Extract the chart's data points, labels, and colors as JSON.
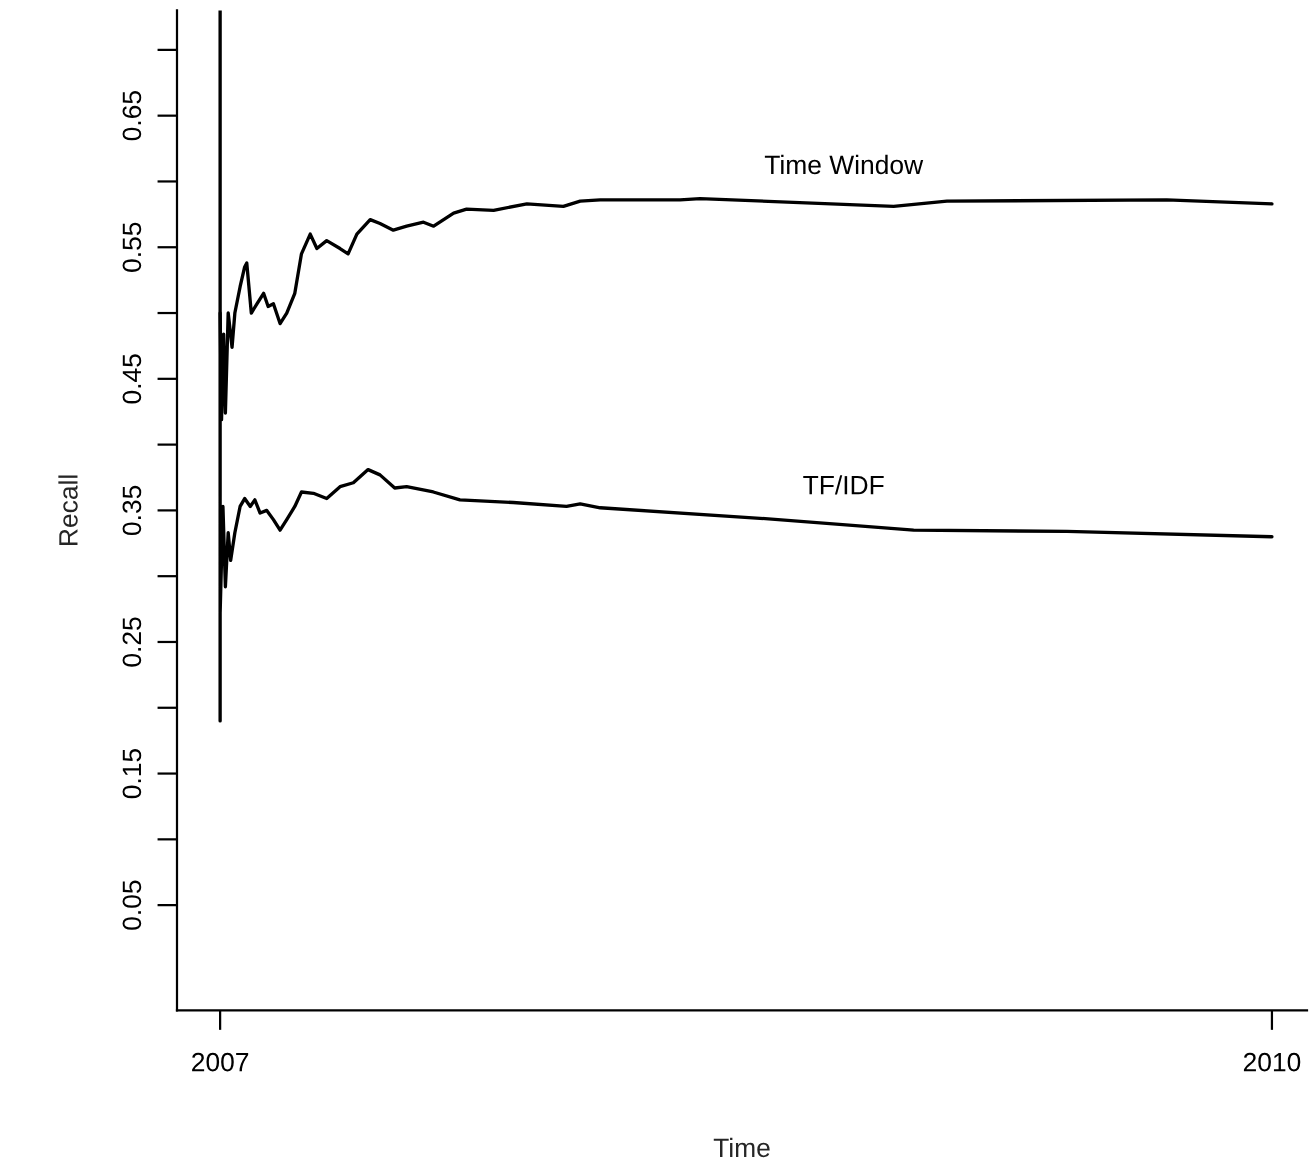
{
  "chart_data": {
    "type": "line",
    "xlabel": "Time",
    "ylabel": "Recall",
    "xlim": [
      2006.877,
      2010.1
    ],
    "xticks": [
      2007,
      2010
    ],
    "ylim": [
      -0.03,
      0.73
    ],
    "yticks": [
      0.05,
      {
        "value": 0.1,
        "label": null
      },
      0.15,
      {
        "value": 0.2,
        "label": null
      },
      0.25,
      {
        "value": 0.3,
        "label": null
      },
      0.35,
      {
        "value": 0.4,
        "label": null
      },
      0.45,
      {
        "value": 0.5,
        "label": null
      },
      0.55,
      {
        "value": 0.6,
        "label": null
      },
      0.65,
      {
        "value": 0.7,
        "label": null
      }
    ],
    "grid": false,
    "legend": false,
    "marker": "none",
    "line_style": "solid",
    "series": [
      {
        "name": "Time Window",
        "color": "#000000",
        "x": [
          2007.0,
          2007.004,
          2007.01,
          2007.015,
          2007.023,
          2007.034,
          2007.042,
          2007.057,
          2007.07,
          2007.076,
          2007.089,
          2007.105,
          2007.124,
          2007.137,
          2007.152,
          2007.171,
          2007.19,
          2007.213,
          2007.232,
          2007.257,
          2007.276,
          2007.304,
          2007.342,
          2007.365,
          2007.39,
          2007.428,
          2007.456,
          2007.494,
          2007.532,
          2007.58,
          2007.609,
          2007.666,
          2007.703,
          2007.78,
          2007.875,
          2007.979,
          2008.027,
          2008.084,
          2008.217,
          2008.312,
          2008.369,
          2008.921,
          2009.073,
          2009.7,
          2010.0
        ],
        "values": [
          0.5,
          0.419,
          0.484,
          0.424,
          0.5,
          0.474,
          0.5,
          0.52,
          0.535,
          0.538,
          0.5,
          0.507,
          0.515,
          0.505,
          0.507,
          0.492,
          0.5,
          0.515,
          0.545,
          0.56,
          0.549,
          0.555,
          0.549,
          0.545,
          0.56,
          0.571,
          0.568,
          0.563,
          0.566,
          0.569,
          0.566,
          0.576,
          0.579,
          0.578,
          0.583,
          0.581,
          0.585,
          0.586,
          0.586,
          0.586,
          0.587,
          0.581,
          0.585,
          0.586,
          0.583
        ]
      },
      {
        "name": "TF/IDF",
        "color": "#000000",
        "x": [
          2007.0,
          2007.0,
          2007.0,
          2007.008,
          2007.015,
          2007.023,
          2007.03,
          2007.042,
          2007.057,
          2007.07,
          2007.086,
          2007.099,
          2007.114,
          2007.133,
          2007.152,
          2007.171,
          2007.19,
          2007.213,
          2007.232,
          2007.266,
          2007.304,
          2007.342,
          2007.38,
          2007.422,
          2007.456,
          2007.498,
          2007.532,
          2007.608,
          2007.684,
          2007.836,
          2007.988,
          2008.027,
          2008.084,
          2008.54,
          2008.978,
          2009.415,
          2010.0
        ],
        "values": [
          0.73,
          0.19,
          0.272,
          0.353,
          0.292,
          0.333,
          0.312,
          0.333,
          0.353,
          0.359,
          0.353,
          0.358,
          0.348,
          0.35,
          0.343,
          0.335,
          0.343,
          0.353,
          0.364,
          0.363,
          0.359,
          0.368,
          0.371,
          0.381,
          0.377,
          0.367,
          0.368,
          0.364,
          0.358,
          0.356,
          0.353,
          0.355,
          0.352,
          0.344,
          0.335,
          0.334,
          0.33
        ]
      }
    ]
  }
}
